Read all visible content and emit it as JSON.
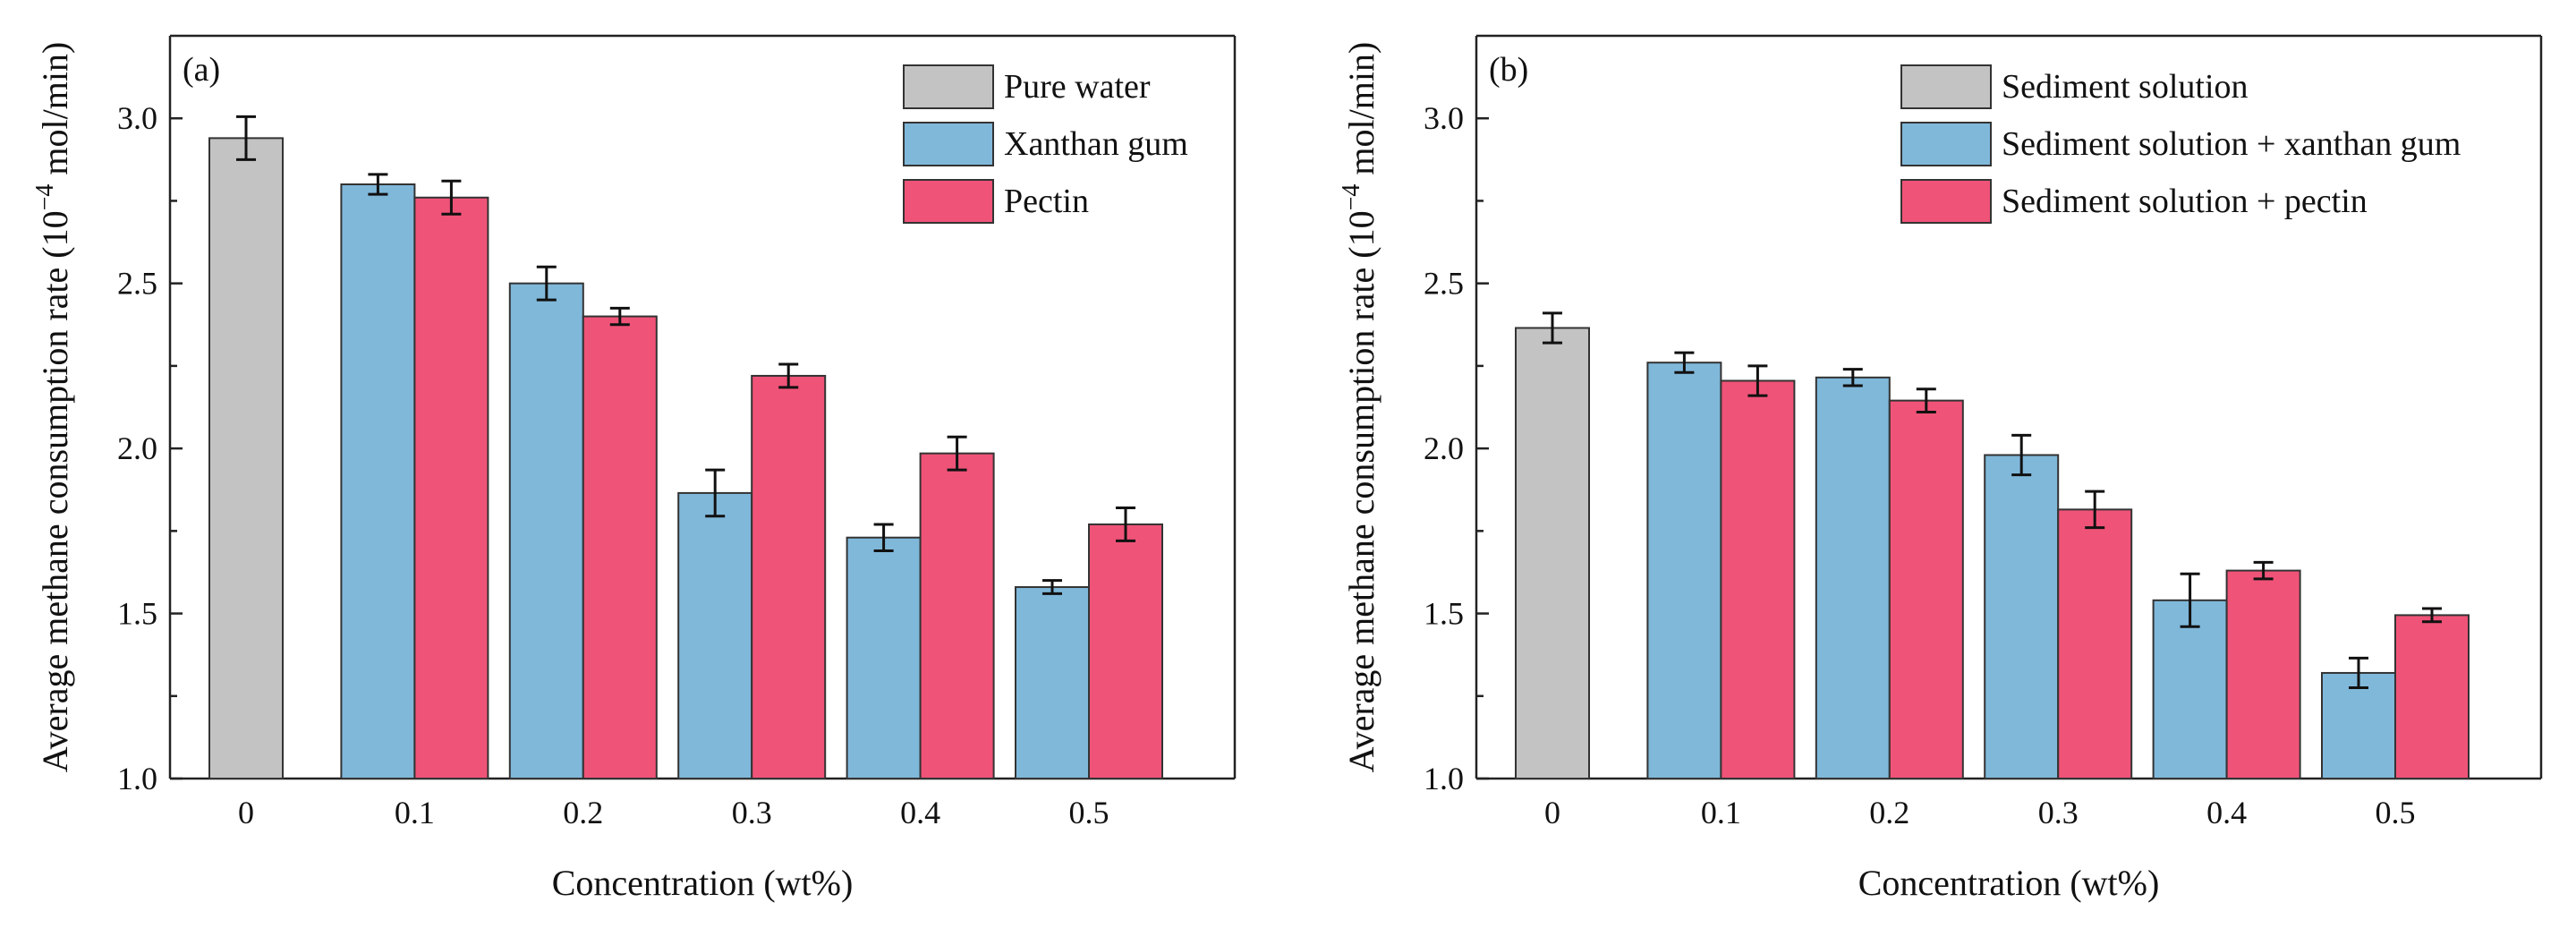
{
  "chart_data": [
    {
      "type": "bar",
      "panel_label": "(a)",
      "xlabel": "Concentration (wt%)",
      "ylabel_parts": [
        "Average methane consumption rate (10",
        "−4",
        " mol/min)"
      ],
      "ylim": [
        1.0,
        3.25
      ],
      "yticks": [
        "1.0",
        "1.5",
        "2.0",
        "2.5",
        "3.0"
      ],
      "categories": [
        "0",
        "0.1",
        "0.2",
        "0.3",
        "0.4",
        "0.5"
      ],
      "legend_position": "top-right",
      "series": [
        {
          "name": "Pure water",
          "color": "#c3c3c3",
          "values": [
            2.94,
            null,
            null,
            null,
            null,
            null
          ],
          "errors": [
            0.065,
            null,
            null,
            null,
            null,
            null
          ]
        },
        {
          "name": "Xanthan gum",
          "color": "#80b8da",
          "values": [
            null,
            2.8,
            2.5,
            1.865,
            1.73,
            1.58
          ],
          "errors": [
            null,
            0.03,
            0.05,
            0.07,
            0.04,
            0.02
          ]
        },
        {
          "name": "Pectin",
          "color": "#f05378",
          "values": [
            null,
            2.76,
            2.4,
            2.22,
            1.985,
            1.77
          ],
          "errors": [
            null,
            0.05,
            0.025,
            0.035,
            0.05,
            0.05
          ]
        }
      ]
    },
    {
      "type": "bar",
      "panel_label": "(b)",
      "xlabel": "Concentration (wt%)",
      "ylabel_parts": [
        "Average methane consumption rate (10",
        "−4",
        " mol/min)"
      ],
      "ylim": [
        1.0,
        3.25
      ],
      "yticks": [
        "1.0",
        "1.5",
        "2.0",
        "2.5",
        "3.0"
      ],
      "categories": [
        "0",
        "0.1",
        "0.2",
        "0.3",
        "0.4",
        "0.5"
      ],
      "legend_position": "top-right",
      "series": [
        {
          "name": "Sediment solution",
          "color": "#c3c3c3",
          "values": [
            2.365,
            null,
            null,
            null,
            null,
            null
          ],
          "errors": [
            0.045,
            null,
            null,
            null,
            null,
            null
          ]
        },
        {
          "name": "Sediment solution + xanthan gum",
          "color": "#80b8da",
          "values": [
            null,
            2.26,
            2.215,
            1.98,
            1.54,
            1.32
          ],
          "errors": [
            null,
            0.03,
            0.025,
            0.06,
            0.08,
            0.045
          ]
        },
        {
          "name": "Sediment solution + pectin",
          "color": "#f05378",
          "values": [
            null,
            2.205,
            2.145,
            1.815,
            1.63,
            1.495
          ],
          "errors": [
            null,
            0.045,
            0.035,
            0.055,
            0.025,
            0.02
          ]
        }
      ]
    }
  ]
}
